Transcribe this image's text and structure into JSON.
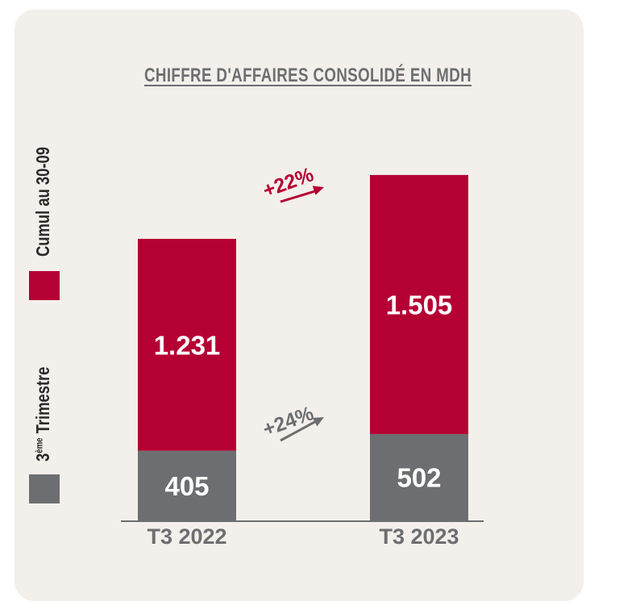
{
  "chart_data": {
    "type": "bar",
    "stacked": true,
    "title": "CHIFFRE D'AFFAIRES CONSOLIDÉ EN MDH",
    "categories": [
      "T3 2022",
      "T3 2023"
    ],
    "series": [
      {
        "name": "3ème Trimestre",
        "values": [
          405,
          502
        ],
        "color": "#6d6e71"
      },
      {
        "name": "Cumul au 30-09",
        "values": [
          1231,
          1505
        ],
        "color": "#b50033"
      }
    ],
    "value_labels": [
      [
        "405",
        "502"
      ],
      [
        "1.231",
        "1.505"
      ]
    ],
    "growth_annotations": [
      {
        "series": "Cumul au 30-09",
        "text": "+22%",
        "color": "#b50033"
      },
      {
        "series": "3ème Trimestre",
        "text": "+24%",
        "color": "#6d6e71"
      }
    ],
    "legend": {
      "placement": "left",
      "orientation": "vertical"
    },
    "grid": false
  },
  "legend": {
    "bottom_prefix": "3",
    "bottom_sup": "ème",
    "bottom_rest": " Trimestre",
    "top": "Cumul au 30-09"
  },
  "colors": {
    "background": "#f3efea",
    "accent": "#b50033",
    "gray": "#6d6e71",
    "axis": "#6d6e71"
  }
}
